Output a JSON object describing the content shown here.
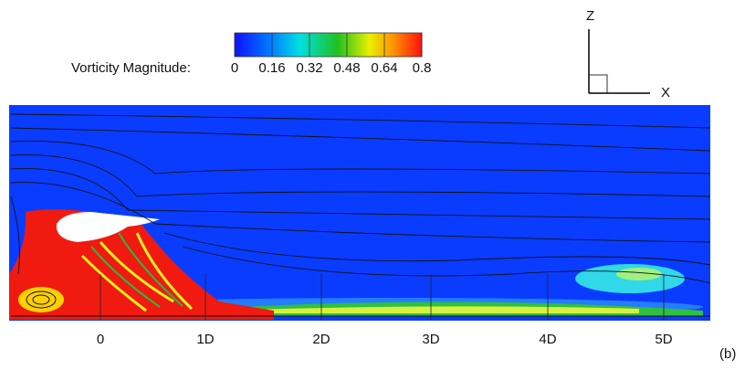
{
  "colorbar": {
    "label": "Vorticity Magnitude:",
    "ticks": [
      0,
      0.16,
      0.32,
      0.48,
      0.64,
      0.8
    ]
  },
  "axes": {
    "z": "Z",
    "x": "X"
  },
  "stations": [
    "0",
    "1D",
    "2D",
    "3D",
    "4D",
    "5D"
  ],
  "panel_label": "(b)"
}
